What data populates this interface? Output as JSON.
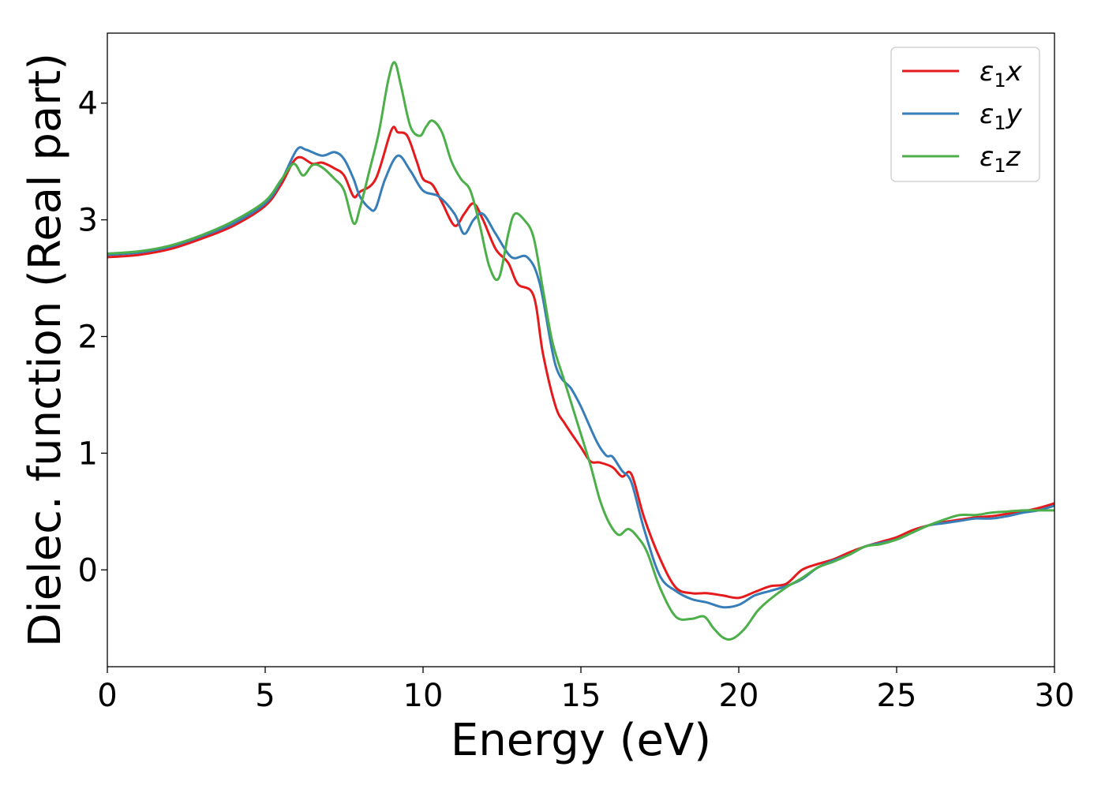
{
  "chart_data": {
    "type": "line",
    "title": "",
    "xlabel": "Energy (eV)",
    "ylabel": "Dielec. function (Real part)",
    "xlim": [
      0,
      30
    ],
    "ylim": [
      -0.83,
      4.6
    ],
    "xticks": [
      0,
      5,
      10,
      15,
      20,
      25,
      30
    ],
    "yticks": [
      0,
      1,
      2,
      3,
      4
    ],
    "grid": false,
    "legend_position": "top-right",
    "series": [
      {
        "name": "ε1x",
        "legend": {
          "base": "ε",
          "sub": "1",
          "var": "x"
        },
        "color": "#e41a1c",
        "x": [
          0,
          1,
          2,
          3,
          4,
          5,
          5.5,
          6.0,
          6.5,
          6.8,
          7.2,
          7.5,
          7.8,
          8.0,
          8.5,
          9.0,
          9.2,
          9.5,
          9.8,
          10.0,
          10.3,
          10.6,
          11.0,
          11.3,
          11.6,
          11.9,
          12.3,
          12.7,
          13.0,
          13.5,
          13.8,
          14.2,
          14.5,
          15.0,
          15.3,
          15.6,
          16.0,
          16.3,
          16.6,
          17.0,
          17.5,
          18.0,
          18.5,
          19.0,
          19.5,
          20.0,
          20.5,
          21.0,
          21.5,
          22.0,
          22.5,
          23.0,
          23.5,
          24.0,
          24.5,
          25.0,
          25.5,
          26.0,
          26.5,
          27.0,
          27.5,
          28.0,
          28.5,
          29.0,
          29.5,
          30.0
        ],
        "y": [
          2.68,
          2.7,
          2.75,
          2.84,
          2.95,
          3.12,
          3.3,
          3.53,
          3.48,
          3.49,
          3.44,
          3.38,
          3.2,
          3.24,
          3.35,
          3.77,
          3.75,
          3.72,
          3.5,
          3.35,
          3.3,
          3.15,
          2.95,
          3.05,
          3.14,
          3.0,
          2.75,
          2.63,
          2.45,
          2.35,
          1.85,
          1.4,
          1.25,
          1.05,
          0.93,
          0.92,
          0.88,
          0.8,
          0.82,
          0.45,
          0.1,
          -0.15,
          -0.2,
          -0.2,
          -0.22,
          -0.24,
          -0.19,
          -0.14,
          -0.12,
          0.0,
          0.05,
          0.09,
          0.15,
          0.2,
          0.24,
          0.28,
          0.34,
          0.38,
          0.41,
          0.43,
          0.45,
          0.46,
          0.48,
          0.5,
          0.53,
          0.57
        ]
      },
      {
        "name": "ε1y",
        "legend": {
          "base": "ε",
          "sub": "1",
          "var": "y"
        },
        "color": "#377eb8",
        "x": [
          0,
          1,
          2,
          3,
          4,
          5,
          5.5,
          6.0,
          6.3,
          6.8,
          7.2,
          7.5,
          7.8,
          8.0,
          8.3,
          8.5,
          8.8,
          9.2,
          9.6,
          10.0,
          10.5,
          11.0,
          11.3,
          11.6,
          11.9,
          12.3,
          12.8,
          13.3,
          13.7,
          14.2,
          14.7,
          15.0,
          15.5,
          15.8,
          16.0,
          16.3,
          16.6,
          17.0,
          17.5,
          18.0,
          18.5,
          19.0,
          19.5,
          20.0,
          20.5,
          21.0,
          21.5,
          22.0,
          22.5,
          23.0,
          23.5,
          24.0,
          24.5,
          25.0,
          25.5,
          26.0,
          26.5,
          27.0,
          27.5,
          28.0,
          28.5,
          29.0,
          29.5,
          30.0
        ],
        "y": [
          2.7,
          2.72,
          2.77,
          2.86,
          2.97,
          3.14,
          3.33,
          3.6,
          3.6,
          3.55,
          3.58,
          3.52,
          3.35,
          3.2,
          3.1,
          3.1,
          3.35,
          3.55,
          3.42,
          3.25,
          3.2,
          3.05,
          2.88,
          3.0,
          3.05,
          2.88,
          2.68,
          2.68,
          2.45,
          1.75,
          1.55,
          1.4,
          1.1,
          0.98,
          0.97,
          0.85,
          0.75,
          0.35,
          -0.05,
          -0.18,
          -0.25,
          -0.28,
          -0.32,
          -0.3,
          -0.22,
          -0.18,
          -0.14,
          -0.08,
          0.02,
          0.08,
          0.13,
          0.2,
          0.23,
          0.26,
          0.32,
          0.38,
          0.4,
          0.42,
          0.44,
          0.44,
          0.46,
          0.49,
          0.51,
          0.55
        ]
      },
      {
        "name": "ε1z",
        "legend": {
          "base": "ε",
          "sub": "1",
          "var": "z"
        },
        "color": "#4daf4a",
        "x": [
          0,
          1,
          2,
          3,
          4,
          5,
          5.5,
          5.9,
          6.2,
          6.5,
          6.8,
          7.2,
          7.5,
          7.8,
          8.0,
          8.3,
          8.6,
          8.9,
          9.1,
          9.3,
          9.6,
          9.9,
          10.1,
          10.3,
          10.6,
          10.9,
          11.2,
          11.5,
          11.8,
          12.1,
          12.4,
          12.7,
          12.9,
          13.2,
          13.5,
          13.8,
          14.1,
          14.5,
          14.9,
          15.3,
          15.6,
          15.9,
          16.2,
          16.5,
          16.8,
          17.1,
          17.5,
          18.0,
          18.5,
          18.9,
          19.2,
          19.5,
          19.8,
          20.2,
          20.6,
          21.0,
          21.5,
          22.0,
          22.5,
          23.0,
          23.5,
          24.0,
          24.5,
          25.0,
          25.5,
          26.0,
          26.5,
          27.0,
          27.5,
          28.0,
          28.5,
          29.0,
          29.5,
          30.0
        ],
        "y": [
          2.71,
          2.73,
          2.78,
          2.87,
          2.99,
          3.16,
          3.34,
          3.48,
          3.38,
          3.47,
          3.45,
          3.35,
          3.25,
          2.97,
          3.1,
          3.42,
          3.75,
          4.2,
          4.35,
          4.15,
          3.8,
          3.72,
          3.8,
          3.85,
          3.75,
          3.5,
          3.35,
          3.25,
          2.95,
          2.6,
          2.5,
          2.88,
          3.05,
          3.0,
          2.85,
          2.4,
          1.95,
          1.6,
          1.25,
          0.9,
          0.6,
          0.4,
          0.3,
          0.35,
          0.28,
          0.15,
          -0.15,
          -0.4,
          -0.42,
          -0.4,
          -0.5,
          -0.58,
          -0.59,
          -0.5,
          -0.35,
          -0.25,
          -0.15,
          -0.07,
          0.02,
          0.07,
          0.13,
          0.2,
          0.22,
          0.26,
          0.32,
          0.38,
          0.43,
          0.47,
          0.47,
          0.49,
          0.5,
          0.51,
          0.51,
          0.51
        ]
      }
    ]
  }
}
